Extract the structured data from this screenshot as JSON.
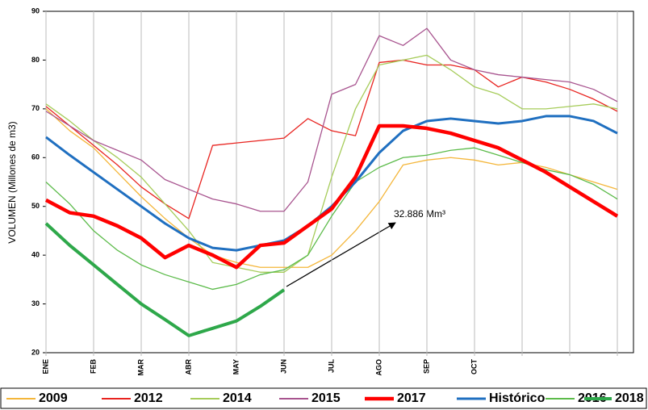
{
  "chart_data": {
    "type": "line",
    "y_label": "VOLUMEN (Millones de m3)",
    "annotation": "32.886 Mm³",
    "categories": [
      "ENE",
      null,
      "FEB",
      null,
      "MAR",
      null,
      "ABR",
      null,
      "MAY",
      null,
      "JUN",
      null,
      "JUL",
      null,
      "AGO",
      null,
      "SEP",
      null,
      "OCT",
      null,
      null,
      null,
      null,
      null,
      null
    ],
    "ylim": [
      20,
      90
    ],
    "yticks": [
      20,
      30,
      40,
      50,
      60,
      70,
      80,
      90
    ],
    "series": [
      {
        "name": "2009",
        "color": "#f4b63a",
        "line_width": 1.3,
        "values": [
          70,
          65.5,
          62,
          57,
          52,
          47.5,
          43.5,
          40,
          38.5,
          37.5,
          37.5,
          37.5,
          40,
          45,
          51,
          58.5,
          59.5,
          60,
          59.5,
          58.5,
          59,
          58,
          56.5,
          55,
          53.5
        ]
      },
      {
        "name": "2012",
        "color": "#e8231f",
        "line_width": 1.3,
        "values": [
          70.5,
          66.5,
          62.5,
          58.5,
          54,
          50.5,
          47.5,
          62.5,
          63,
          63.5,
          64,
          68,
          65.5,
          64.5,
          79.5,
          80,
          79,
          79,
          78,
          74.5,
          76.5,
          75.5,
          74,
          72,
          69.5
        ]
      },
      {
        "name": "2014",
        "color": "#a6cc5a",
        "line_width": 1.3,
        "values": [
          71,
          67.5,
          63.5,
          60,
          56,
          50.5,
          45,
          38.5,
          37.5,
          36.5,
          36.5,
          40,
          56,
          70,
          79,
          80,
          81,
          78,
          74.5,
          73,
          70,
          70,
          70.5,
          71,
          70
        ]
      },
      {
        "name": "2015",
        "color": "#a8548f",
        "line_width": 1.3,
        "values": [
          69.5,
          66.5,
          63.5,
          61.5,
          59.5,
          55.5,
          53.5,
          51.5,
          50.5,
          49,
          49,
          55,
          73,
          75,
          85,
          83,
          86.5,
          80,
          78,
          77,
          76.5,
          76,
          75.5,
          74,
          71.5
        ]
      },
      {
        "name": "2017",
        "color": "#ff0000",
        "line_width": 4.5,
        "values": [
          51.3,
          48.7,
          48,
          46,
          43.5,
          39.5,
          42,
          40,
          37.5,
          42,
          42.5,
          46,
          49.5,
          56,
          66.5,
          66.5,
          66,
          65,
          63.5,
          62,
          59.5,
          57,
          54,
          51,
          48
        ]
      },
      {
        "name": "Histórico",
        "color": "#1f6fc0",
        "line_width": 3,
        "values": [
          64.2,
          60.5,
          57,
          53.5,
          50,
          46.5,
          43.5,
          41.5,
          41,
          42,
          43,
          46,
          50,
          55,
          61,
          65.5,
          67.5,
          68,
          67.5,
          67,
          67.5,
          68.5,
          68.5,
          67.5,
          65
        ]
      },
      {
        "name": "2016",
        "color": "#5cbb4a",
        "line_width": 1.3,
        "values": [
          55,
          50.5,
          45,
          41,
          38,
          36,
          34.5,
          33,
          34,
          36,
          37,
          40,
          48,
          55,
          58,
          60,
          60.5,
          61.5,
          62,
          60.5,
          59,
          57.5,
          56.5,
          54.5,
          51.5
        ]
      },
      {
        "name": "2018",
        "color": "#2ea84a",
        "line_width": 4,
        "values": [
          46.5,
          42,
          38,
          34,
          30,
          26.8,
          23.5,
          25,
          26.5,
          29.5,
          32.9,
          null,
          null,
          null,
          null,
          null,
          null,
          null,
          null,
          null,
          null,
          null,
          null,
          null,
          null
        ]
      }
    ]
  }
}
